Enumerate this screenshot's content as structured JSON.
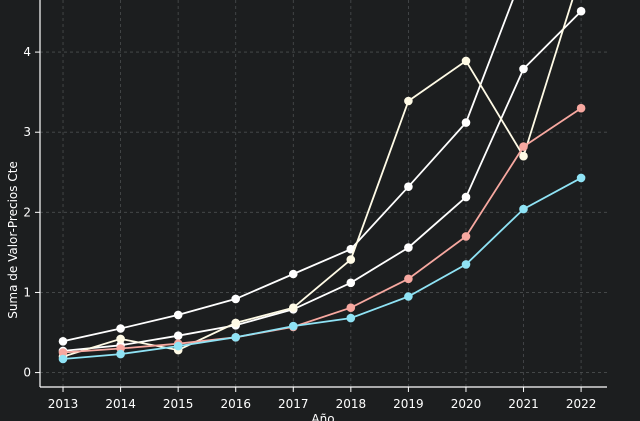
{
  "chart_data": {
    "type": "line",
    "xlabel": "Año",
    "ylabel": "Suma de Valor-Precios Cte",
    "x": [
      2013,
      2014,
      2015,
      2016,
      2017,
      2018,
      2019,
      2020,
      2021,
      2022
    ],
    "xlim": [
      2012.6,
      2022.45
    ],
    "ylim": [
      -0.18,
      4.65
    ],
    "yticks": [
      0,
      1,
      2,
      3,
      4
    ],
    "grid": true,
    "series": [
      {
        "color": "#ffffff",
        "values": [
          0.39,
          0.55,
          0.72,
          0.92,
          1.23,
          1.54,
          2.32,
          3.12,
          5.0,
          5.0
        ]
      },
      {
        "color": "#ffffff",
        "values": [
          0.27,
          0.34,
          0.46,
          0.59,
          0.79,
          1.12,
          1.56,
          2.19,
          3.79,
          4.51
        ]
      },
      {
        "color": "#fffbe6",
        "values": [
          0.2,
          0.42,
          0.28,
          0.62,
          0.81,
          1.41,
          3.39,
          3.89,
          2.7,
          5.0
        ]
      },
      {
        "color": "#f7a8a0",
        "values": [
          0.25,
          0.3,
          0.36,
          0.44,
          0.57,
          0.81,
          1.17,
          1.7,
          2.82,
          3.3
        ]
      },
      {
        "color": "#8fe3f5",
        "values": [
          0.17,
          0.23,
          0.33,
          0.44,
          0.58,
          0.68,
          0.95,
          1.35,
          2.04,
          2.43
        ]
      }
    ]
  }
}
